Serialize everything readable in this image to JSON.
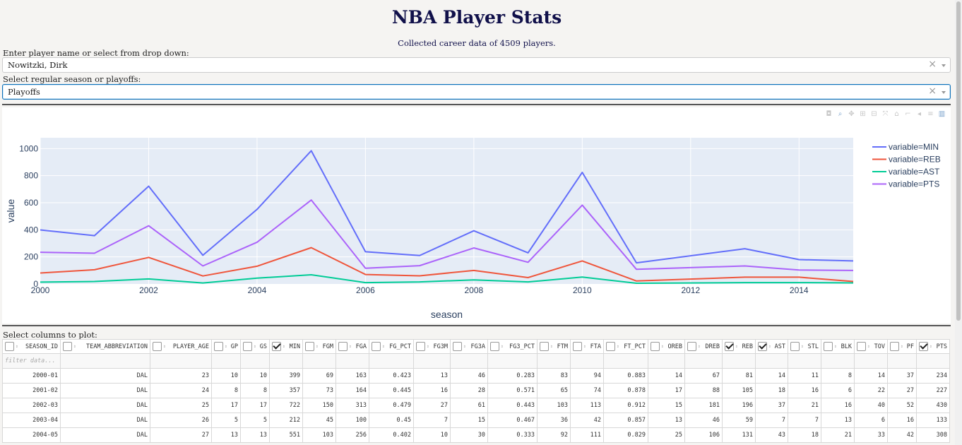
{
  "header": {
    "title": "NBA Player Stats",
    "subtitle": "Collected career data of 4509 players."
  },
  "player_select": {
    "label": "Enter player name or select from drop down:",
    "value": "Nowitzki, Dirk",
    "clear_label": "×"
  },
  "season_select": {
    "label": "Select regular season or playoffs:",
    "value": "Playoffs",
    "clear_label": "×"
  },
  "modebar": [
    "camera-icon",
    "zoom-icon",
    "pan-icon",
    "zoom-in-icon",
    "zoom-out-icon",
    "autoscale-icon",
    "home-icon",
    "spike-icon",
    "hover-closest-icon",
    "hover-compare-icon",
    "plotly-logo-icon"
  ],
  "chart_data": {
    "type": "line",
    "x": [
      2000,
      2001,
      2002,
      2003,
      2004,
      2005,
      2006,
      2007,
      2008,
      2009,
      2010,
      2011,
      2013,
      2014,
      2015
    ],
    "series": [
      {
        "name": "variable=MIN",
        "color": "#636efa",
        "values": [
          399,
          357,
          722,
          212,
          551,
          984,
          238,
          210,
          393,
          230,
          824,
          156,
          260,
          180,
          170
        ]
      },
      {
        "name": "variable=REB",
        "color": "#ef553b",
        "values": [
          81,
          105,
          196,
          59,
          131,
          268,
          70,
          60,
          100,
          47,
          170,
          22,
          50,
          50,
          18
        ]
      },
      {
        "name": "variable=AST",
        "color": "#00cc96",
        "values": [
          14,
          18,
          37,
          7,
          43,
          68,
          10,
          15,
          30,
          15,
          51,
          5,
          10,
          10,
          8
        ]
      },
      {
        "name": "variable=PTS",
        "color": "#ab63fa",
        "values": [
          234,
          227,
          430,
          133,
          308,
          620,
          116,
          135,
          266,
          160,
          582,
          108,
          133,
          103,
          100
        ]
      }
    ],
    "xlabel": "season",
    "ylabel": "value",
    "xticks": [
      2000,
      2002,
      2004,
      2006,
      2008,
      2010,
      2012,
      2014
    ],
    "yticks": [
      0,
      200,
      400,
      600,
      800,
      1000
    ],
    "xlim": [
      2000,
      2015
    ],
    "ylim": [
      0,
      1080
    ],
    "grid": true,
    "legend": "right"
  },
  "table": {
    "label": "Select columns to plot:",
    "filter_placeholder": "filter data...",
    "columns": [
      {
        "name": "SEASON_ID",
        "checked": false,
        "width": 82
      },
      {
        "name": "TEAM_ABBREVIATION",
        "checked": false,
        "width": 127
      },
      {
        "name": "PLAYER_AGE",
        "checked": false,
        "width": 87
      },
      {
        "name": "GP",
        "checked": false,
        "width": 41
      },
      {
        "name": "GS",
        "checked": false,
        "width": 41
      },
      {
        "name": "MIN",
        "checked": true,
        "width": 47
      },
      {
        "name": "FGM",
        "checked": false,
        "width": 47
      },
      {
        "name": "FGA",
        "checked": false,
        "width": 47
      },
      {
        "name": "FG_PCT",
        "checked": false,
        "width": 63
      },
      {
        "name": "FG3M",
        "checked": false,
        "width": 52
      },
      {
        "name": "FG3A",
        "checked": false,
        "width": 53
      },
      {
        "name": "FG3_PCT",
        "checked": false,
        "width": 70
      },
      {
        "name": "FTM",
        "checked": false,
        "width": 47
      },
      {
        "name": "FTA",
        "checked": false,
        "width": 47
      },
      {
        "name": "FT_PCT",
        "checked": false,
        "width": 63
      },
      {
        "name": "OREB",
        "checked": false,
        "width": 52
      },
      {
        "name": "DREB",
        "checked": false,
        "width": 53
      },
      {
        "name": "REB",
        "checked": true,
        "width": 47
      },
      {
        "name": "AST",
        "checked": true,
        "width": 46
      },
      {
        "name": "STL",
        "checked": false,
        "width": 47
      },
      {
        "name": "BLK",
        "checked": false,
        "width": 47
      },
      {
        "name": "TOV",
        "checked": false,
        "width": 47
      },
      {
        "name": "PF",
        "checked": false,
        "width": 41
      },
      {
        "name": "PTS",
        "checked": true,
        "width": 47
      }
    ],
    "rows": [
      [
        "2000-01",
        "DAL",
        "23",
        "10",
        "10",
        "399",
        "69",
        "163",
        "0.423",
        "13",
        "46",
        "0.283",
        "83",
        "94",
        "0.883",
        "14",
        "67",
        "81",
        "14",
        "11",
        "8",
        "14",
        "37",
        "234"
      ],
      [
        "2001-02",
        "DAL",
        "24",
        "8",
        "8",
        "357",
        "73",
        "164",
        "0.445",
        "16",
        "28",
        "0.571",
        "65",
        "74",
        "0.878",
        "17",
        "88",
        "105",
        "18",
        "16",
        "6",
        "22",
        "27",
        "227"
      ],
      [
        "2002-03",
        "DAL",
        "25",
        "17",
        "17",
        "722",
        "150",
        "313",
        "0.479",
        "27",
        "61",
        "0.443",
        "103",
        "113",
        "0.912",
        "15",
        "181",
        "196",
        "37",
        "21",
        "16",
        "40",
        "52",
        "430"
      ],
      [
        "2003-04",
        "DAL",
        "26",
        "5",
        "5",
        "212",
        "45",
        "100",
        "0.45",
        "7",
        "15",
        "0.467",
        "36",
        "42",
        "0.857",
        "13",
        "46",
        "59",
        "7",
        "7",
        "13",
        "6",
        "16",
        "133"
      ],
      [
        "2004-05",
        "DAL",
        "27",
        "13",
        "13",
        "551",
        "103",
        "256",
        "0.402",
        "10",
        "30",
        "0.333",
        "92",
        "111",
        "0.829",
        "25",
        "106",
        "131",
        "43",
        "18",
        "21",
        "33",
        "42",
        "308"
      ]
    ]
  }
}
